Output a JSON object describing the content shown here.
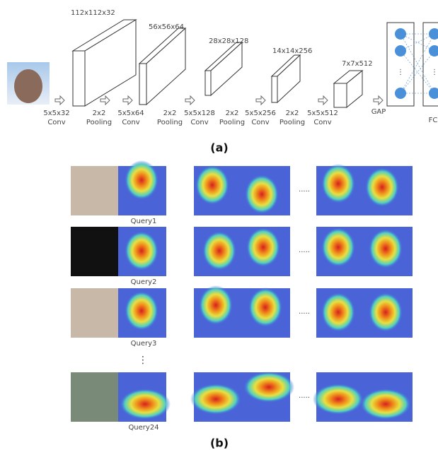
{
  "figure_a": {
    "layer_sizes": [
      "112x112x32",
      "56x56x64",
      "28x28x128",
      "14x14x256",
      "7x7x512"
    ],
    "operations": [
      {
        "line1": "5x5x32",
        "line2": "Conv"
      },
      {
        "line1": "2x2",
        "line2": "Pooling"
      },
      {
        "line1": "5x5x64",
        "line2": "Conv"
      },
      {
        "line1": "2x2",
        "line2": "Pooling"
      },
      {
        "line1": "5x5x128",
        "line2": "Conv"
      },
      {
        "line1": "2x2",
        "line2": "Pooling"
      },
      {
        "line1": "5x5x256",
        "line2": "Conv"
      },
      {
        "line1": "2x2",
        "line2": "Pooling"
      },
      {
        "line1": "5x5x512",
        "line2": "Conv"
      }
    ],
    "gap": "GAP",
    "fc": "FC",
    "fc_dots": "⋮",
    "caption": "(a)"
  },
  "figure_b": {
    "queries": [
      "Query1",
      "Query2",
      "Query3",
      "Query24"
    ],
    "row_ellipsis": ".....",
    "vertical_ellipsis": "⋮",
    "caption": "(b)"
  }
}
